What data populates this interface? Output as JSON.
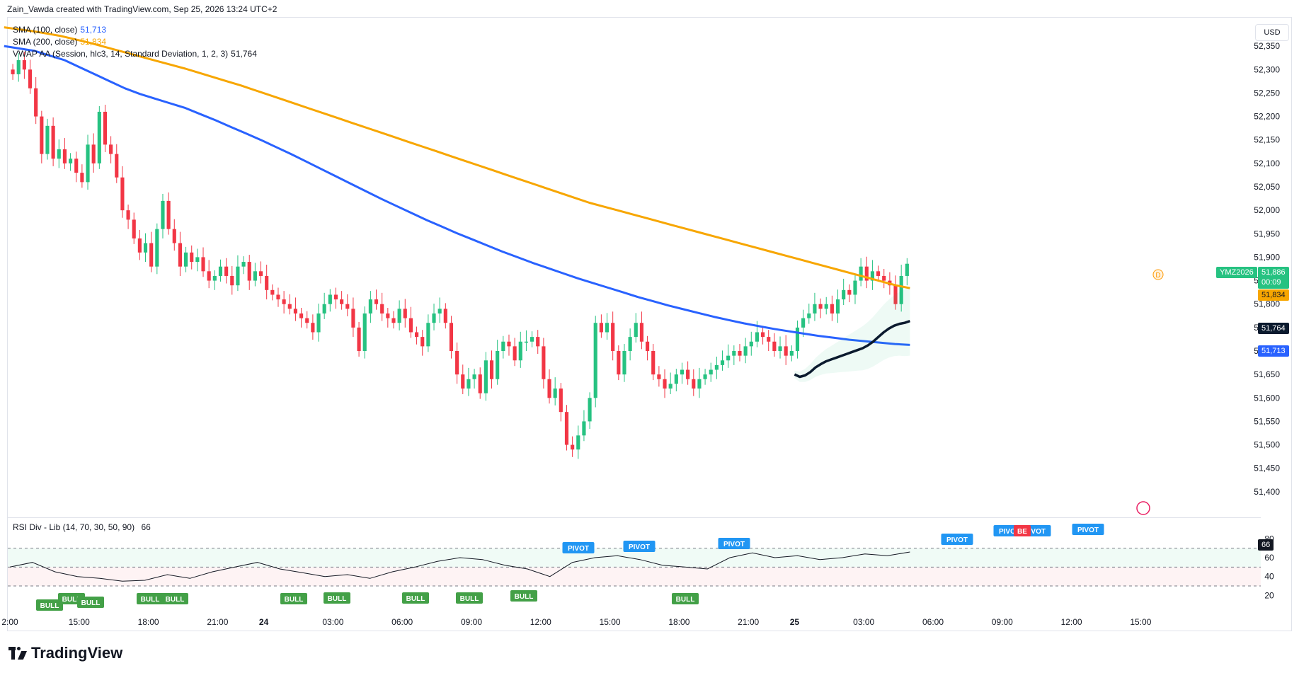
{
  "header": {
    "attribution": "Zain_Vawda created with TradingView.com, Sep 25, 2026 13:24 UTC+2"
  },
  "legend": {
    "sma100": {
      "label": "SMA (100, close)",
      "value": "51,713",
      "color": "#2962ff"
    },
    "sma200": {
      "label": "SMA (200, close)",
      "value": "51,834",
      "color": "#f7a600"
    },
    "vwap": {
      "label": "VWAP AA (Session, hlc3, 14, Standard Deviation, 1, 2, 3)",
      "value": "51,764",
      "color": "#0b1a2e"
    }
  },
  "currency": "USD",
  "price_badges": {
    "symbol": "YMZ2026",
    "last": "51,886",
    "countdown": "00:09",
    "sma200": "51,834",
    "vwap": "51,764",
    "sma100": "51,713"
  },
  "rsi": {
    "title": "RSI Div - Lib (14, 70, 30, 50, 90)",
    "value": "66",
    "ticks": [
      "80",
      "60",
      "40",
      "20"
    ],
    "pivot_label": "PIVOT",
    "bull_label": "BULL",
    "bear_label": "BE"
  },
  "footer": {
    "brand": "TradingView"
  },
  "colors": {
    "up": "#26c281",
    "down": "#f23645",
    "sma100": "#2962ff",
    "sma200": "#f7a600",
    "vwap": "#0b1a2e",
    "pivot": "#2196f3",
    "bull": "#43a047",
    "bear": "#f23645"
  },
  "chart_data": {
    "type": "candlestick",
    "symbol": "YMZ2026",
    "ylim": [
      51350,
      52400
    ],
    "y_ticks": [
      52350,
      52300,
      52250,
      52200,
      52150,
      52100,
      52050,
      52000,
      51950,
      51900,
      51850,
      51800,
      51750,
      51700,
      51650,
      51600,
      51550,
      51500,
      51450,
      51400
    ],
    "y_tick_labels": [
      "52,350",
      "52,300",
      "52,250",
      "52,200",
      "52,150",
      "52,100",
      "52,050",
      "52,000",
      "51,950",
      "51,900",
      "51,850",
      "51,800",
      "51,750",
      "51,700",
      "51,650",
      "51,600",
      "51,550",
      "51,500",
      "51,450",
      "51,400"
    ],
    "x_tick_labels": [
      {
        "bar": 0,
        "label": "2:00",
        "bold": false
      },
      {
        "bar": 12,
        "label": "15:00",
        "bold": false
      },
      {
        "bar": 24,
        "label": "18:00",
        "bold": false
      },
      {
        "bar": 36,
        "label": "21:00",
        "bold": false
      },
      {
        "bar": 44,
        "label": "24",
        "bold": true
      },
      {
        "bar": 56,
        "label": "03:00",
        "bold": false
      },
      {
        "bar": 68,
        "label": "06:00",
        "bold": false
      },
      {
        "bar": 80,
        "label": "09:00",
        "bold": false
      },
      {
        "bar": 92,
        "label": "12:00",
        "bold": false
      },
      {
        "bar": 104,
        "label": "15:00",
        "bold": false
      },
      {
        "bar": 116,
        "label": "18:00",
        "bold": false
      },
      {
        "bar": 128,
        "label": "21:00",
        "bold": false
      },
      {
        "bar": 136,
        "label": "25",
        "bold": true
      },
      {
        "bar": 148,
        "label": "03:00",
        "bold": false
      },
      {
        "bar": 160,
        "label": "06:00",
        "bold": false
      },
      {
        "bar": 172,
        "label": "09:00",
        "bold": false
      },
      {
        "bar": 184,
        "label": "12:00",
        "bold": false
      },
      {
        "bar": 196,
        "label": "15:00",
        "bold": false
      }
    ],
    "candles_close": [
      52290,
      52320,
      52300,
      52260,
      52200,
      52120,
      52180,
      52110,
      52130,
      52100,
      52110,
      52080,
      52060,
      52140,
      52100,
      52210,
      52140,
      52120,
      52070,
      52000,
      51980,
      51940,
      51910,
      51930,
      51880,
      51960,
      52020,
      51960,
      51930,
      51880,
      51910,
      51890,
      51900,
      51870,
      51850,
      51860,
      51880,
      51860,
      51840,
      51880,
      51890,
      51850,
      51870,
      51860,
      51830,
      51820,
      51810,
      51800,
      51790,
      51780,
      51770,
      51760,
      51740,
      51780,
      51800,
      51820,
      51810,
      51800,
      51790,
      51750,
      51700,
      51780,
      51810,
      51800,
      51780,
      51770,
      51760,
      51790,
      51770,
      51740,
      51730,
      51710,
      51760,
      51780,
      51790,
      51760,
      51700,
      51650,
      51620,
      51640,
      51650,
      51610,
      51680,
      51640,
      51700,
      51720,
      51710,
      51680,
      51720,
      51720,
      51730,
      51710,
      51640,
      51600,
      51620,
      51570,
      51500,
      51490,
      51520,
      51550,
      51600,
      51760,
      51740,
      51760,
      51700,
      51650,
      51700,
      51730,
      51760,
      51720,
      51700,
      51650,
      51640,
      51620,
      51630,
      51650,
      51660,
      51640,
      51620,
      51640,
      51650,
      51660,
      51670,
      51680,
      51690,
      51700,
      51690,
      51710,
      51720,
      51740,
      51730,
      51720,
      51700,
      51710,
      51690,
      51700,
      51750,
      51770,
      51780,
      51800,
      51790,
      51800,
      51780,
      51810,
      51830,
      51820,
      51850,
      51880,
      51850,
      51870,
      51860,
      51850,
      51840,
      51800,
      51860,
      51886
    ],
    "sma100": [
      52350,
      52345,
      52340,
      52330,
      52320,
      52305,
      52290,
      52275,
      52260,
      52248,
      52238,
      52228,
      52218,
      52205,
      52192,
      52178,
      52164,
      52150,
      52135,
      52120,
      52104,
      52088,
      52072,
      52056,
      52040,
      52024,
      52009,
      51994,
      51979,
      51965,
      51951,
      51938,
      51925,
      51912,
      51900,
      51888,
      51877,
      51866,
      51855,
      51845,
      51835,
      51825,
      51815,
      51806,
      51797,
      51789,
      51781,
      51773,
      51766,
      51759,
      51753,
      51747,
      51742,
      51737,
      51732,
      51728,
      51724,
      51721,
      51718,
      51715,
      51713
    ],
    "sma200": [
      52390,
      52386,
      52382,
      52377,
      52372,
      52365,
      52358,
      52350,
      52342,
      52334,
      52326,
      52318,
      52310,
      52302,
      52293,
      52284,
      52275,
      52266,
      52256,
      52246,
      52236,
      52226,
      52216,
      52206,
      52196,
      52186,
      52176,
      52166,
      52156,
      52146,
      52136,
      52126,
      52116,
      52106,
      52096,
      52086,
      52076,
      52066,
      52056,
      52046,
      52036,
      52026,
      52016,
      52008,
      52000,
      51992,
      51984,
      51976,
      51968,
      51960,
      51952,
      51944,
      51936,
      51928,
      51920,
      51912,
      51904,
      51896,
      51888,
      51880,
      51872,
      51864,
      51856,
      51848,
      51840,
      51834
    ],
    "vwap": [
      51650,
      51645,
      51648,
      51655,
      51665,
      51672,
      51678,
      51682,
      51686,
      51690,
      51694,
      51698,
      51702,
      51706,
      51712,
      51720,
      51730,
      51740,
      51748,
      51754,
      51758,
      51760,
      51764
    ],
    "rsi": [
      50,
      55,
      45,
      40,
      38,
      35,
      36,
      42,
      38,
      45,
      50,
      55,
      48,
      44,
      40,
      42,
      38,
      45,
      50,
      56,
      60,
      58,
      52,
      48,
      40,
      55,
      60,
      62,
      58,
      52,
      50,
      48,
      60,
      65,
      60,
      62,
      58,
      60,
      64,
      62,
      66
    ]
  }
}
